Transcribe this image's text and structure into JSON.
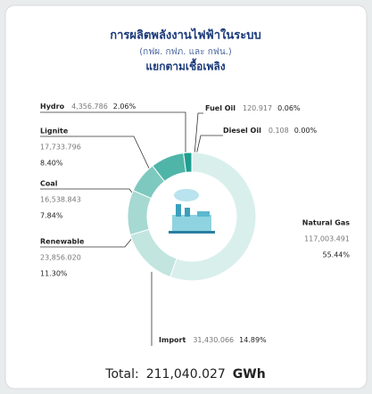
{
  "chart_data": {
    "type": "pie",
    "title": "การผลิตพลังงานไฟฟ้าในระบบ",
    "subtitle": "(กฟผ. กฟภ. และ กฟน.)",
    "subtitle2": "แยกตามเชื้อเพลิง",
    "categories": [
      "Fuel Oil",
      "Diesel Oil",
      "Natural Gas",
      "Import",
      "Renewable",
      "Coal",
      "Lignite",
      "Hydro"
    ],
    "values": [
      120.917,
      0.108,
      117003.491,
      31430.066,
      23856.02,
      16538.843,
      17733.796,
      4356.786
    ],
    "value_labels": [
      "120.917",
      "0.108",
      "117,003.491",
      "31,430.066",
      "23,856.020",
      "16,538.843",
      "17,733.796",
      "4,356.786"
    ],
    "shares": [
      0.06,
      0.0,
      55.44,
      14.89,
      11.3,
      7.84,
      8.4,
      2.06
    ],
    "share_labels": [
      "0.06%",
      "0.00%",
      "55.44%",
      "14.89%",
      "11.30%",
      "7.84%",
      "8.40%",
      "2.06%"
    ],
    "colors": [
      "#0f8a7c",
      "#0a6f63",
      "#d9efec",
      "#c2e5e0",
      "#a5d9d1",
      "#7ec9bf",
      "#4fb5a8",
      "#1f9e8f"
    ],
    "total_prefix": "Total:",
    "total": 211040.027,
    "total_label": "211,040.027",
    "unit": "GWh"
  }
}
